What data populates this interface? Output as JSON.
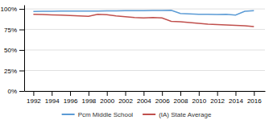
{
  "chart_data": {
    "type": "line",
    "x": [
      1992,
      1993,
      1994,
      1995,
      1996,
      1997,
      1998,
      1999,
      2000,
      2001,
      2002,
      2003,
      2004,
      2005,
      2006,
      2007,
      2008,
      2009,
      2010,
      2011,
      2012,
      2013,
      2014,
      2015,
      2016
    ],
    "series": [
      {
        "name": "Pcm Middle School",
        "color": "#5b9bd5",
        "values": [
          97.0,
          97.1,
          97.2,
          97.3,
          97.4,
          97.5,
          97.4,
          97.5,
          97.6,
          97.7,
          97.8,
          97.9,
          98.0,
          98.1,
          98.2,
          98.3,
          94.5,
          94.0,
          93.5,
          93.5,
          93.2,
          93.5,
          92.5,
          97.2,
          97.8
        ]
      },
      {
        "name": "(IA) State Average",
        "color": "#c0504d",
        "values": [
          93.5,
          93.2,
          92.8,
          92.4,
          92.0,
          91.6,
          91.0,
          93.5,
          93.0,
          91.5,
          90.5,
          89.5,
          89.0,
          89.5,
          89.0,
          85.0,
          84.5,
          83.5,
          82.5,
          81.5,
          81.0,
          80.5,
          80.0,
          79.5,
          78.5
        ]
      }
    ],
    "xlim": [
      1991.0,
      2017.2
    ],
    "xticks": [
      1992,
      1994,
      1996,
      1998,
      2000,
      2002,
      2004,
      2006,
      2008,
      2010,
      2012,
      2014,
      2016
    ],
    "ylim": [
      0,
      105
    ],
    "yticks": [
      {
        "value": 0,
        "label": "0%"
      },
      {
        "value": 25,
        "label": "25%"
      },
      {
        "value": 50,
        "label": "50%"
      },
      {
        "value": 75,
        "label": "75%"
      },
      {
        "value": 100,
        "label": "100%"
      }
    ],
    "grid": true,
    "legend": "bottom"
  }
}
